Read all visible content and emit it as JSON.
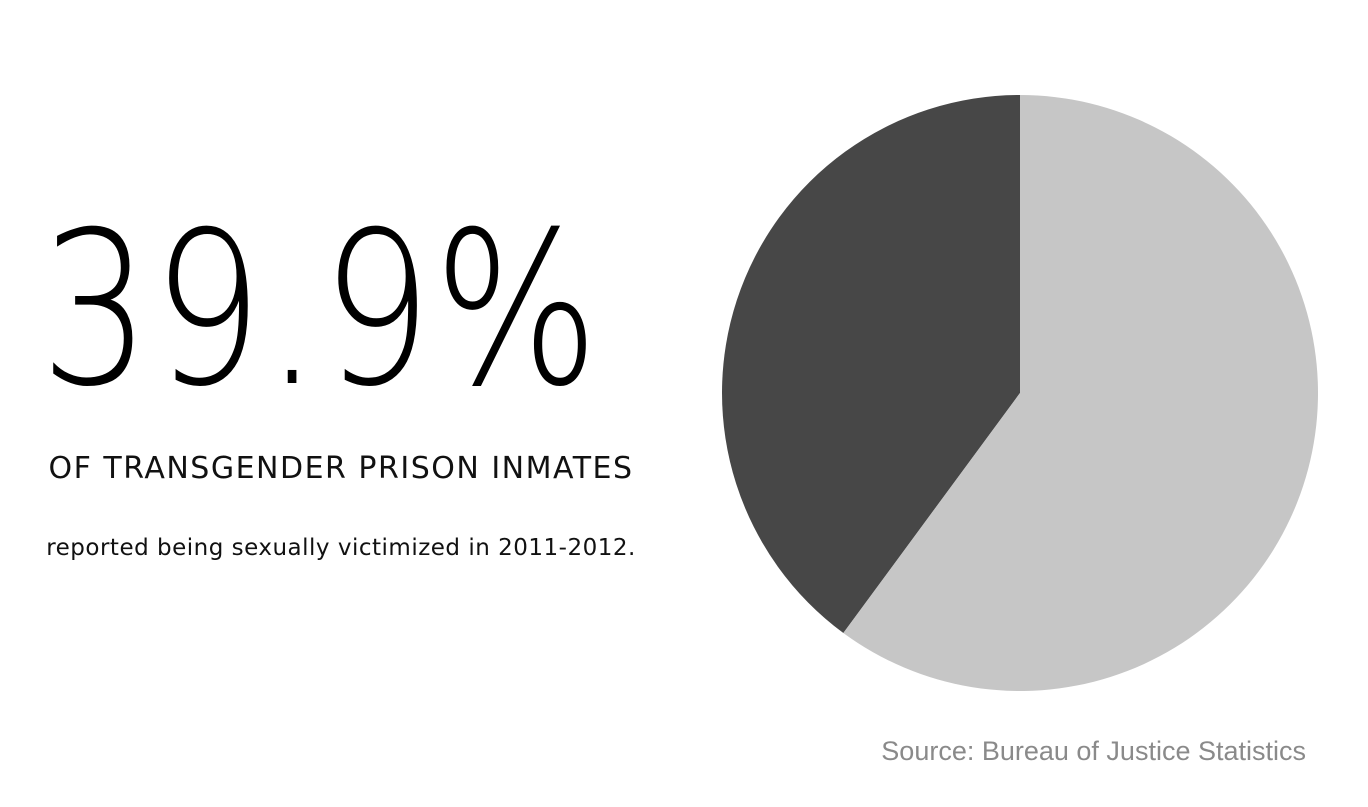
{
  "headline": {
    "stat": "39.9%",
    "subhead": "OF TRANSGENDER PRISON INMATES",
    "caption": "reported being sexually victimized in 2011-2012."
  },
  "source": "Source: Bureau of Justice Statistics",
  "colors": {
    "highlight": "#474747",
    "remainder": "#c6c6c6",
    "stat_text": "#000000",
    "source_text": "#8a8a8a"
  },
  "chart_data": {
    "type": "pie",
    "slices": [
      {
        "value": 39.9,
        "color": "#474747"
      },
      {
        "value": 60.1,
        "color": "#c6c6c6"
      }
    ],
    "start_angle_deg": 0,
    "direction": "counterclockwise",
    "legend": "none"
  }
}
